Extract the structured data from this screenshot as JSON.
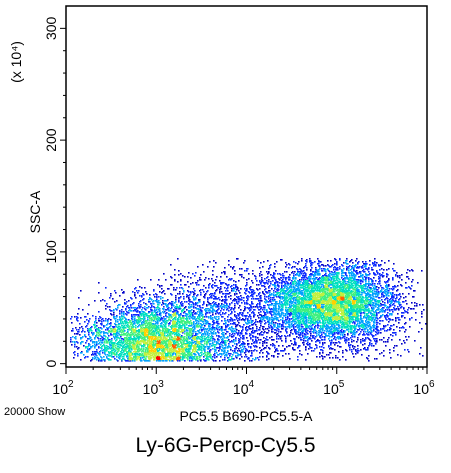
{
  "chart_data": {
    "type": "scatter",
    "title": "",
    "caption": "Ly-6G-Percp-Cy5.5",
    "xlabel": "PC5.5 B690-PC5.5-A",
    "ylabel": "SSC-A",
    "y_scale_note": "(x 10⁴)",
    "x_scale": "log",
    "xlim": [
      100,
      1000000
    ],
    "ylim": [
      -3,
      320
    ],
    "x_ticks": [
      {
        "value": 100,
        "base": "10",
        "exp": "2"
      },
      {
        "value": 1000,
        "base": "10",
        "exp": "3"
      },
      {
        "value": 10000,
        "base": "10",
        "exp": "4"
      },
      {
        "value": 100000,
        "base": "10",
        "exp": "5"
      },
      {
        "value": 1000000,
        "base": "10",
        "exp": "6"
      }
    ],
    "y_ticks": [
      0,
      100,
      200,
      300
    ],
    "event_count_label": "20000 Show",
    "color_scale": [
      "#0000c8",
      "#0a28ff",
      "#00a0ff",
      "#00e0c0",
      "#40f080",
      "#c0f040",
      "#ffd000",
      "#ff6000",
      "#ff0000"
    ],
    "populations": [
      {
        "x_center": 1000,
        "y_center": 22,
        "x_spread_decades": 0.42,
        "y_spread": 18,
        "events": 9500,
        "density": "high"
      },
      {
        "x_center": 90000,
        "y_center": 55,
        "x_spread_decades": 0.35,
        "y_spread": 17,
        "events": 8500,
        "density": "high"
      },
      {
        "x_center": 8000,
        "y_center": 45,
        "x_spread_decades": 0.6,
        "y_spread": 22,
        "events": 2000,
        "density": "low"
      }
    ]
  }
}
